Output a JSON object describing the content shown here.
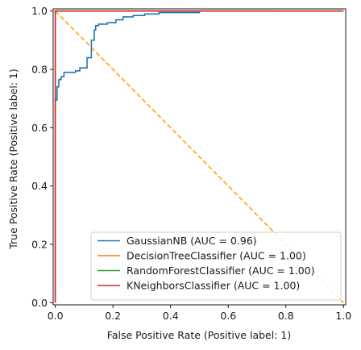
{
  "chart_data": {
    "type": "line",
    "title": "",
    "xlabel": "False Positive Rate (Positive label: 1)",
    "ylabel": "True Positive Rate (Positive label: 1)",
    "xlim": [
      -0.0075,
      1.0075
    ],
    "ylim": [
      -0.0075,
      1.0075
    ],
    "xticks": [
      "0.0",
      "0.2",
      "0.4",
      "0.6",
      "0.8",
      "1.0"
    ],
    "yticks": [
      "0.0",
      "0.2",
      "0.4",
      "0.6",
      "0.8",
      "1.0"
    ],
    "grid": false,
    "legend_position": "lower-right",
    "series": [
      {
        "name": "GaussianNB (AUC = 0.96)",
        "color": "#1f77b4",
        "x": [
          0.0,
          0.0,
          0.006,
          0.006,
          0.012,
          0.012,
          0.02,
          0.02,
          0.03,
          0.03,
          0.07,
          0.07,
          0.085,
          0.085,
          0.11,
          0.11,
          0.125,
          0.125,
          0.135,
          0.135,
          0.14,
          0.14,
          0.15,
          0.15,
          0.18,
          0.18,
          0.21,
          0.21,
          0.235,
          0.235,
          0.27,
          0.27,
          0.31,
          0.31,
          0.36,
          0.36,
          0.5,
          0.5,
          0.76
        ],
        "y": [
          0.0,
          0.695,
          0.695,
          0.74,
          0.74,
          0.765,
          0.765,
          0.775,
          0.775,
          0.79,
          0.79,
          0.795,
          0.795,
          0.805,
          0.805,
          0.84,
          0.84,
          0.9,
          0.9,
          0.935,
          0.935,
          0.95,
          0.95,
          0.955,
          0.955,
          0.96,
          0.96,
          0.97,
          0.97,
          0.98,
          0.98,
          0.985,
          0.985,
          0.99,
          0.99,
          0.995,
          0.995,
          1.0,
          1.0
        ]
      },
      {
        "name": "DecisionTreeClassifier (AUC = 1.00)",
        "color": "#ff7f0e",
        "x": [
          0.0,
          0.0,
          1.0
        ],
        "y": [
          0.0,
          1.0,
          1.0
        ]
      },
      {
        "name": "RandomForestClassifier (AUC = 1.00)",
        "color": "#2ca02c",
        "x": [
          0.0,
          0.0,
          1.0
        ],
        "y": [
          0.0,
          1.0,
          1.0
        ]
      },
      {
        "name": "KNeighborsClassifier (AUC = 1.00)",
        "color": "#d62728",
        "x": [
          0.0,
          0.0,
          1.0
        ],
        "y": [
          0.0,
          1.0,
          1.0
        ]
      }
    ],
    "reference_line": {
      "x": [
        0.0,
        1.0
      ],
      "y": [
        1.0,
        0.0
      ],
      "color": "#ffa500",
      "style": "dashed"
    }
  }
}
